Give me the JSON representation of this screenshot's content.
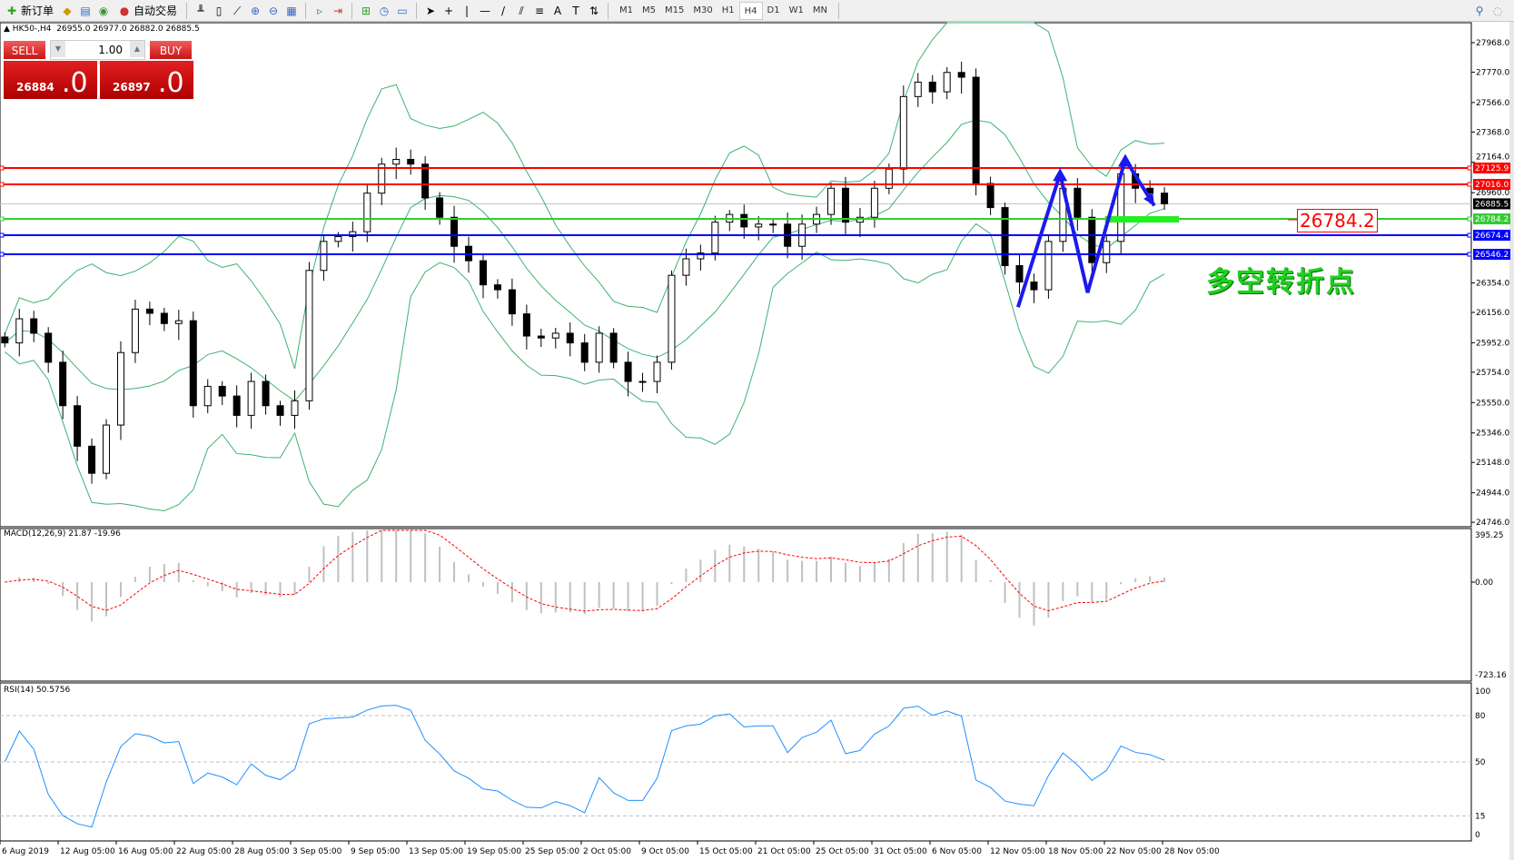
{
  "toolbar": {
    "new_order": "新订单",
    "auto_trading": "自动交易",
    "timeframes": [
      "M1",
      "M5",
      "M15",
      "M30",
      "H1",
      "H4",
      "D1",
      "W1",
      "MN"
    ],
    "active_timeframe": "H4",
    "icons": [
      "new-order-icon",
      "market-watch-icon",
      "navigator-icon",
      "signals-icon",
      "auto-trading-icon",
      "bar-chart-icon",
      "candlestick-icon",
      "line-chart-icon",
      "zoom-in-icon",
      "zoom-out-icon",
      "tile-windows-icon",
      "scroll-chart-icon",
      "chart-shift-icon",
      "indicators-icon",
      "periods-icon",
      "templates-icon",
      "cursor-icon",
      "crosshair-icon",
      "vertical-line-icon",
      "horizontal-line-icon",
      "trendline-icon",
      "equidistant-channel-icon",
      "fibonacci-icon",
      "text-icon",
      "text-label-icon",
      "arrows-icon",
      "search-icon",
      "chat-icon"
    ]
  },
  "header": {
    "symbol": "HK50-,H4",
    "ohlc": "26955.0 26977.0 26882.0 26885.5"
  },
  "trade_panel": {
    "sell": "SELL",
    "buy": "BUY",
    "lot": "1.00",
    "bid_main": "26884",
    "bid_frac": ".0",
    "ask_main": "26897",
    "ask_frac": ".0"
  },
  "annotation": {
    "text": "多空转折点",
    "level_label": "26784.2",
    "zigzag": [
      {
        "bar": 69.9,
        "price": 26191
      },
      {
        "bar": 72.8,
        "price": 27087
      },
      {
        "bar": 74.7,
        "price": 26289
      },
      {
        "bar": 77.3,
        "price": 27184
      },
      {
        "bar": 79.3,
        "price": 26873
      }
    ],
    "zone": {
      "price": 26784.2,
      "from_bar": 75.9,
      "to_bar": 81
    }
  },
  "chart_data": {
    "type": "candlestick",
    "price_axis": [
      "27968.0",
      "27770.0",
      "27566.0",
      "27368.0",
      "27164.0",
      "26960.0",
      "26354.0",
      "26156.0",
      "25952.0",
      "25754.0",
      "25550.0",
      "25346.0",
      "25148.0",
      "24944.0",
      "24746.0"
    ],
    "ylim": [
      24746,
      27968
    ],
    "current_price": "26885.5",
    "levels": [
      {
        "value": "27125.9",
        "color": "#ff0000"
      },
      {
        "value": "27016.0",
        "color": "#ff0000"
      },
      {
        "value": "26784.2",
        "color": "#33cc33"
      },
      {
        "value": "26674.4",
        "color": "#0000ff"
      },
      {
        "value": "26546.2",
        "color": "#0000ff"
      }
    ],
    "dates": [
      "6 Aug 2019",
      "12 Aug 05:00",
      "16 Aug 05:00",
      "22 Aug 05:00",
      "28 Aug 05:00",
      "3 Sep 05:00",
      "9 Sep 05:00",
      "13 Sep 05:00",
      "19 Sep 05:00",
      "25 Sep 05:00",
      "2 Oct 05:00",
      "9 Oct 05:00",
      "15 Oct 05:00",
      "21 Oct 05:00",
      "25 Oct 05:00",
      "31 Oct 05:00",
      "6 Nov 05:00",
      "12 Nov 05:00",
      "18 Nov 05:00",
      "22 Nov 05:00",
      "28 Nov 05:00"
    ],
    "close": [
      25951,
      26113,
      26016,
      25821,
      25529,
      25257,
      25075,
      25399,
      25886,
      26178,
      26150,
      26081,
      26100,
      25529,
      25659,
      25594,
      25464,
      25692,
      25529,
      25464,
      25562,
      26438,
      26633,
      26665,
      26698,
      26957,
      27152,
      27184,
      27152,
      26925,
      26795,
      26600,
      26503,
      26341,
      26308,
      26146,
      25997,
      25984,
      26016,
      25951,
      25821,
      26016,
      25821,
      25692,
      25692,
      25821,
      26405,
      26516,
      26555,
      26762,
      26814,
      26730,
      26749,
      26749,
      26600,
      26749,
      26814,
      26990,
      26762,
      26795,
      26990,
      27119,
      27606,
      27703,
      27638,
      27768,
      27736,
      27022,
      26860,
      26470,
      26360,
      26308,
      26633,
      26990,
      26795,
      26490,
      26633,
      27087,
      26990,
      26957,
      26885.5
    ],
    "bands_color": "#3cb371",
    "macd": {
      "label": "MACD(12,26,9) 21.87 -19.96",
      "axis": [
        "395.25",
        "0.00",
        "-723.16"
      ],
      "signal_color": "#ff0000",
      "hist_color": "#c0c0c0"
    },
    "rsi": {
      "label": "RSI(14) 50.5756",
      "axis": [
        "100",
        "80",
        "50",
        "15",
        "0"
      ],
      "color": "#1e90ff"
    }
  }
}
